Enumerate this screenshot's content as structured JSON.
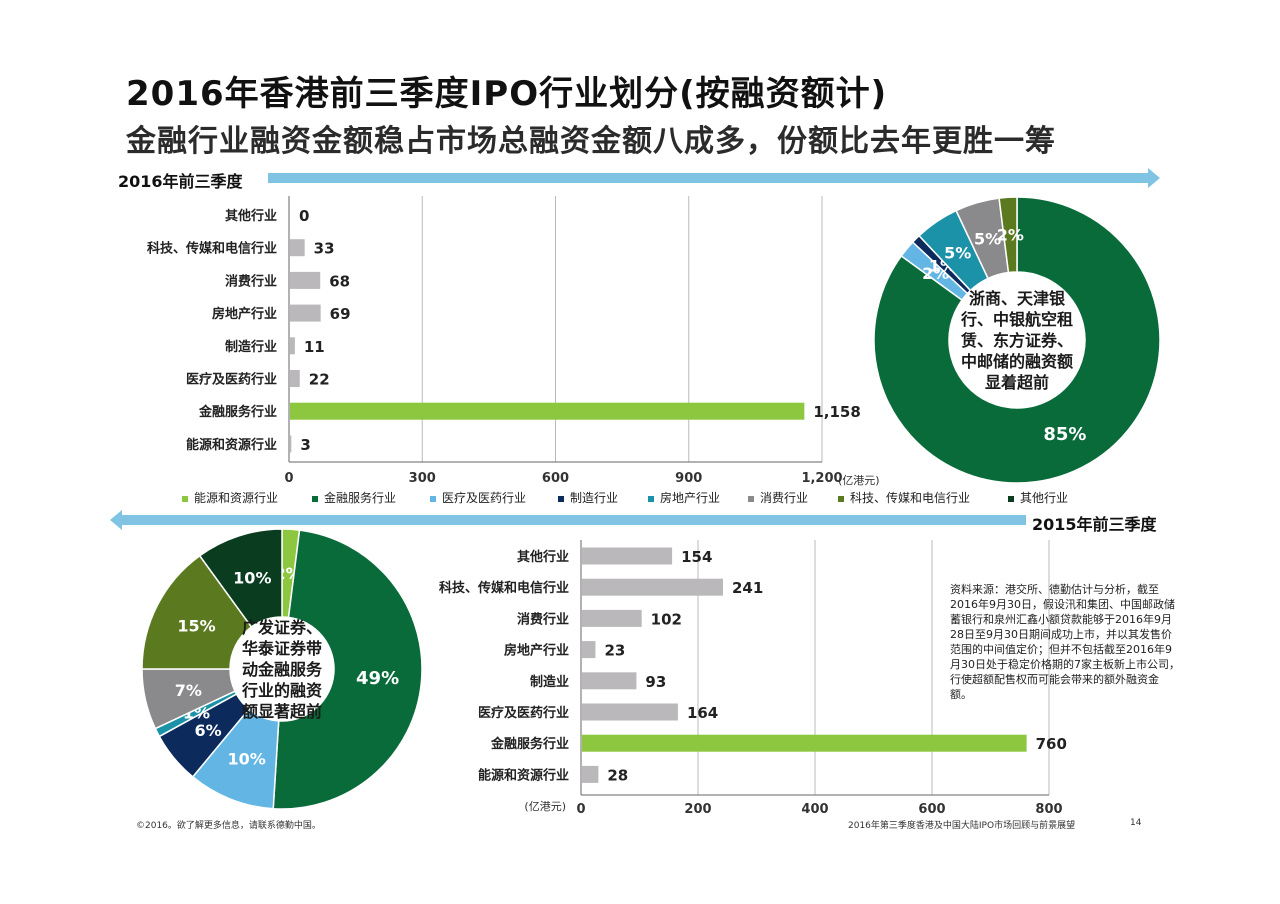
{
  "header": {
    "title": "2016年香港前三季度IPO行业划分(按融资额计)",
    "subtitle": "金融行业融资金额稳占市场总融资金额八成多，份额比去年更胜一筹"
  },
  "periods": {
    "top": "2016年前三季度",
    "bottom": "2015年前三季度"
  },
  "colors": {
    "bar_green": "#8dc63f",
    "bar_grey": "#bab8ba",
    "arrow_blue": "#7fc4e2",
    "dark_green": "#0a6b3a",
    "light_blue": "#63b6e4",
    "navy": "#0c2a5c",
    "teal": "#1b92a8",
    "grey": "#8a8a8c",
    "olive": "#5b7a1f",
    "black_green": "#0a3d1f"
  },
  "legend": [
    {
      "label": "能源和资源行业",
      "color": "#8dc63f"
    },
    {
      "label": "金融服务行业",
      "color": "#0a6b3a"
    },
    {
      "label": "医疗及医药行业",
      "color": "#63b6e4"
    },
    {
      "label": "制造行业",
      "color": "#0c2a5c"
    },
    {
      "label": "房地产行业",
      "color": "#1b92a8"
    },
    {
      "label": "消费行业",
      "color": "#8a8a8c"
    },
    {
      "label": "科技、传媒和电信行业",
      "color": "#5b7a1f"
    },
    {
      "label": "其他行业",
      "color": "#0a3d1f"
    }
  ],
  "chart_data": [
    {
      "type": "bar",
      "orientation": "horizontal",
      "categories": [
        "其他行业",
        "科技、传媒和电信行业",
        "消费行业",
        "房地产行业",
        "制造行业",
        "医疗及医药行业",
        "金融服务行业",
        "能源和资源行业"
      ],
      "values": [
        0,
        33,
        68,
        69,
        11,
        22,
        1158,
        3
      ],
      "value_labels": [
        "0",
        "33",
        "68",
        "69",
        "11",
        "22",
        "1,158",
        "3"
      ],
      "xlim": [
        0,
        1200
      ],
      "ticks": [
        "0",
        "300",
        "600",
        "900",
        "1,200"
      ],
      "unit": "(亿港元)",
      "highlight": "金融服务行业"
    },
    {
      "type": "pie",
      "donut": true,
      "slices": [
        {
          "name": "金融服务行业",
          "value": 85,
          "label": "85%",
          "color": "#0a6b3a"
        },
        {
          "name": "医疗及医药行业",
          "value": 2,
          "label": "2%",
          "color": "#63b6e4"
        },
        {
          "name": "制造行业",
          "value": 1,
          "label": "1%",
          "color": "#0c2a5c"
        },
        {
          "name": "房地产行业",
          "value": 5,
          "label": "5%",
          "color": "#1b92a8"
        },
        {
          "name": "消费行业",
          "value": 5,
          "label": "5%",
          "color": "#8a8a8c"
        },
        {
          "name": "科技、传媒和电信行业",
          "value": 2,
          "label": "2%",
          "color": "#5b7a1f"
        }
      ],
      "center_text": [
        "浙商、天津银",
        "行、中银航空租",
        "赁、东方证券、",
        "中邮储的融资额",
        "显着超前"
      ]
    },
    {
      "type": "pie",
      "donut": true,
      "slices": [
        {
          "name": "能源和资源行业",
          "value": 2,
          "label": "2%",
          "color": "#8dc63f"
        },
        {
          "name": "金融服务行业",
          "value": 49,
          "label": "49%",
          "color": "#0a6b3a"
        },
        {
          "name": "医疗及医药行业",
          "value": 10,
          "label": "10%",
          "color": "#63b6e4"
        },
        {
          "name": "制造行业",
          "value": 6,
          "label": "6%",
          "color": "#0c2a5c"
        },
        {
          "name": "房地产行业",
          "value": 1,
          "label": "1%",
          "color": "#1b92a8"
        },
        {
          "name": "消费行业",
          "value": 7,
          "label": "7%",
          "color": "#8a8a8c"
        },
        {
          "name": "科技、传媒和电信行业",
          "value": 15,
          "label": "15%",
          "color": "#5b7a1f"
        },
        {
          "name": "其他行业",
          "value": 10,
          "label": "10%",
          "color": "#0a3d1f"
        }
      ],
      "center_text": [
        "广发证券、",
        "华泰证券带",
        "动金融服务",
        "行业的融资",
        "额显著超前"
      ]
    },
    {
      "type": "bar",
      "orientation": "horizontal",
      "categories": [
        "其他行业",
        "科技、传媒和电信行业",
        "消费行业",
        "房地产行业",
        "制造业",
        "医疗及医药行业",
        "金融服务行业",
        "能源和资源行业"
      ],
      "values": [
        154,
        241,
        102,
        23,
        93,
        164,
        760,
        28
      ],
      "value_labels": [
        "154",
        "241",
        "102",
        "23",
        "93",
        "164",
        "760",
        "28"
      ],
      "xlim": [
        0,
        800
      ],
      "ticks": [
        "0",
        "200",
        "400",
        "600",
        "800"
      ],
      "unit": "(亿港元)",
      "highlight": "金融服务行业"
    }
  ],
  "source_note": "资料来源：港交所、德勤估计与分析，截至2016年9月30日，假设汛和集团、中国邮政储蓄银行和泉州汇鑫小额贷款能够于2016年9月28日至9月30日期间成功上市，并以其发售价范围的中间值定价；但并不包括截至2016年9月30日处于稳定价格期的7家主板新上市公司，行使超额配售权而可能会带来的额外融资金额。",
  "footer": {
    "left": "©2016。欲了解更多信息，请联系德勤中国。",
    "right": "2016年第三季度香港及中国大陆IPO市场回顾与前景展望",
    "page": "14"
  }
}
